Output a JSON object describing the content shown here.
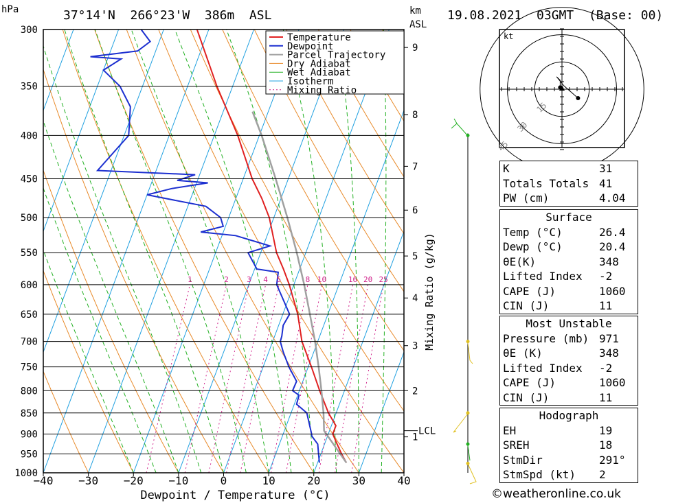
{
  "header": {
    "hpa_unit": "hPa",
    "km_unit": "km",
    "asl_unit": "ASL",
    "location": "37°14'N  266°23'W  386m  ASL",
    "datetime": "19.08.2021  03GMT  (Base: 00)"
  },
  "footer": {
    "credit": "©weatheronline.co.uk"
  },
  "colors": {
    "temperature": "#e02020",
    "dewpoint": "#1c2fd0",
    "parcel": "#a0a0a0",
    "dry_adiabat": "#e88a2a",
    "wet_adiabat": "#22b022",
    "isotherm": "#1fa0e0",
    "mixing_ratio": "#d0208a"
  },
  "stability": {
    "general": [
      {
        "k": "K",
        "v": "31"
      },
      {
        "k": "Totals Totals",
        "v": "41"
      },
      {
        "k": "PW (cm)",
        "v": "4.04"
      }
    ],
    "surface_title": "Surface",
    "surface": [
      {
        "k": "Temp (°C)",
        "v": "26.4"
      },
      {
        "k": "Dewp (°C)",
        "v": "20.4"
      },
      {
        "k": "θE(K)",
        "v": "348"
      },
      {
        "k": "Lifted Index",
        "v": "-2"
      },
      {
        "k": "CAPE (J)",
        "v": "1060"
      },
      {
        "k": "CIN (J)",
        "v": "11"
      }
    ],
    "mu_title": "Most Unstable",
    "mu": [
      {
        "k": "Pressure (mb)",
        "v": "971"
      },
      {
        "k": "θE (K)",
        "v": "348"
      },
      {
        "k": "Lifted Index",
        "v": "-2"
      },
      {
        "k": "CAPE (J)",
        "v": "1060"
      },
      {
        "k": "CIN (J)",
        "v": "11"
      }
    ],
    "hodo_title": "Hodograph",
    "hodo": [
      {
        "k": "EH",
        "v": "19"
      },
      {
        "k": "SREH",
        "v": "18"
      },
      {
        "k": "StmDir",
        "v": "291°"
      },
      {
        "k": "StmSpd (kt)",
        "v": "2"
      }
    ]
  },
  "hodograph": {
    "unit_label": "kt",
    "ring_labels": [
      "15",
      "30",
      "45"
    ],
    "trace_uv": [
      [
        -1,
        1
      ],
      [
        -1,
        5
      ],
      [
        -3,
        7
      ],
      [
        1,
        2
      ],
      [
        9,
        -5
      ]
    ]
  },
  "chart_data": {
    "type": "line",
    "subtype": "skew-T log-P",
    "xlabel": "Dewpoint / Temperature (°C)",
    "ylabel_right": "Mixing Ratio (g/kg)",
    "x_ticks": [
      "-40",
      "-30",
      "-20",
      "-10",
      "0",
      "10",
      "20",
      "30",
      "40"
    ],
    "xlim": [
      -40,
      40
    ],
    "ylim_hpa": [
      1000,
      300
    ],
    "pressure_ticks": [
      "300",
      "350",
      "400",
      "450",
      "500",
      "550",
      "600",
      "650",
      "700",
      "750",
      "800",
      "850",
      "900",
      "950",
      "1000"
    ],
    "km_ticks": [
      {
        "label": "9",
        "hpa": 315
      },
      {
        "label": "8",
        "hpa": 378
      },
      {
        "label": "7",
        "hpa": 435
      },
      {
        "label": "6",
        "hpa": 490
      },
      {
        "label": "5",
        "hpa": 555
      },
      {
        "label": "4",
        "hpa": 622
      },
      {
        "label": "3",
        "hpa": 708
      },
      {
        "label": "2",
        "hpa": 800
      },
      {
        "label": "1",
        "hpa": 907
      }
    ],
    "lcl": {
      "label": "LCL",
      "hpa": 892
    },
    "mixing_ratio_labels": [
      {
        "label": "1",
        "w": 1
      },
      {
        "label": "2",
        "w": 2
      },
      {
        "label": "3",
        "w": 3
      },
      {
        "label": "4",
        "w": 4
      },
      {
        "label": "5",
        "w": 5
      },
      {
        "label": "8",
        "w": 8
      },
      {
        "label": "10",
        "w": 10
      },
      {
        "label": "16",
        "w": 16
      },
      {
        "label": "20",
        "w": 20
      },
      {
        "label": "25",
        "w": 25
      }
    ],
    "legend": [
      "Temperature",
      "Dewpoint",
      "Parcel Trajectory",
      "Dry Adiabat",
      "Wet Adiabat",
      "Isotherm",
      "Mixing Ratio"
    ],
    "legend_position": "top-right",
    "series": [
      {
        "name": "Temperature",
        "points": [
          [
            973,
            26.4
          ],
          [
            950,
            24.6
          ],
          [
            925,
            22.8
          ],
          [
            900,
            21.0
          ],
          [
            880,
            21.0
          ],
          [
            850,
            18.3
          ],
          [
            800,
            14.5
          ],
          [
            750,
            10.7
          ],
          [
            700,
            6.5
          ],
          [
            650,
            3.3
          ],
          [
            600,
            -1.0
          ],
          [
            575,
            -3.6
          ],
          [
            550,
            -6.5
          ],
          [
            500,
            -11.0
          ],
          [
            475,
            -14.2
          ],
          [
            450,
            -18.0
          ],
          [
            400,
            -24.8
          ],
          [
            350,
            -33.5
          ],
          [
            300,
            -42.6
          ]
        ]
      },
      {
        "name": "Dewpoint",
        "points": [
          [
            973,
            20.4
          ],
          [
            950,
            19.5
          ],
          [
            925,
            18.5
          ],
          [
            905,
            16.5
          ],
          [
            900,
            16.3
          ],
          [
            850,
            13.5
          ],
          [
            830,
            10.5
          ],
          [
            810,
            10.3
          ],
          [
            800,
            8.5
          ],
          [
            780,
            8.6
          ],
          [
            750,
            5.7
          ],
          [
            720,
            3.2
          ],
          [
            700,
            1.7
          ],
          [
            690,
            1.6
          ],
          [
            670,
            1.0
          ],
          [
            650,
            1.5
          ],
          [
            600,
            -3.8
          ],
          [
            580,
            -4.5
          ],
          [
            575,
            -9.5
          ],
          [
            550,
            -12.8
          ],
          [
            540,
            -8.5
          ],
          [
            525,
            -17.0
          ],
          [
            520,
            -25.0
          ],
          [
            512,
            -20.5
          ],
          [
            500,
            -21.8
          ],
          [
            485,
            -26.0
          ],
          [
            470,
            -40.0
          ],
          [
            462,
            -35.0
          ],
          [
            455,
            -27.5
          ],
          [
            452,
            -34.5
          ],
          [
            445,
            -31.0
          ],
          [
            440,
            -53.0
          ],
          [
            400,
            -49.0
          ],
          [
            370,
            -51.0
          ],
          [
            350,
            -55.0
          ],
          [
            335,
            -60.0
          ],
          [
            325,
            -57.0
          ],
          [
            323,
            -64.0
          ],
          [
            318,
            -54.0
          ],
          [
            310,
            -52.0
          ],
          [
            300,
            -55.0
          ]
        ]
      },
      {
        "name": "Parcel Trajectory",
        "points": [
          [
            973,
            26.4
          ],
          [
            892,
            18.8
          ],
          [
            850,
            17.2
          ],
          [
            800,
            14.9
          ],
          [
            750,
            12.3
          ],
          [
            700,
            9.4
          ],
          [
            650,
            6.0
          ],
          [
            600,
            2.3
          ],
          [
            550,
            -2.0
          ],
          [
            500,
            -7.0
          ],
          [
            450,
            -12.8
          ],
          [
            400,
            -19.5
          ],
          [
            375,
            -23.5
          ]
        ]
      }
    ]
  }
}
